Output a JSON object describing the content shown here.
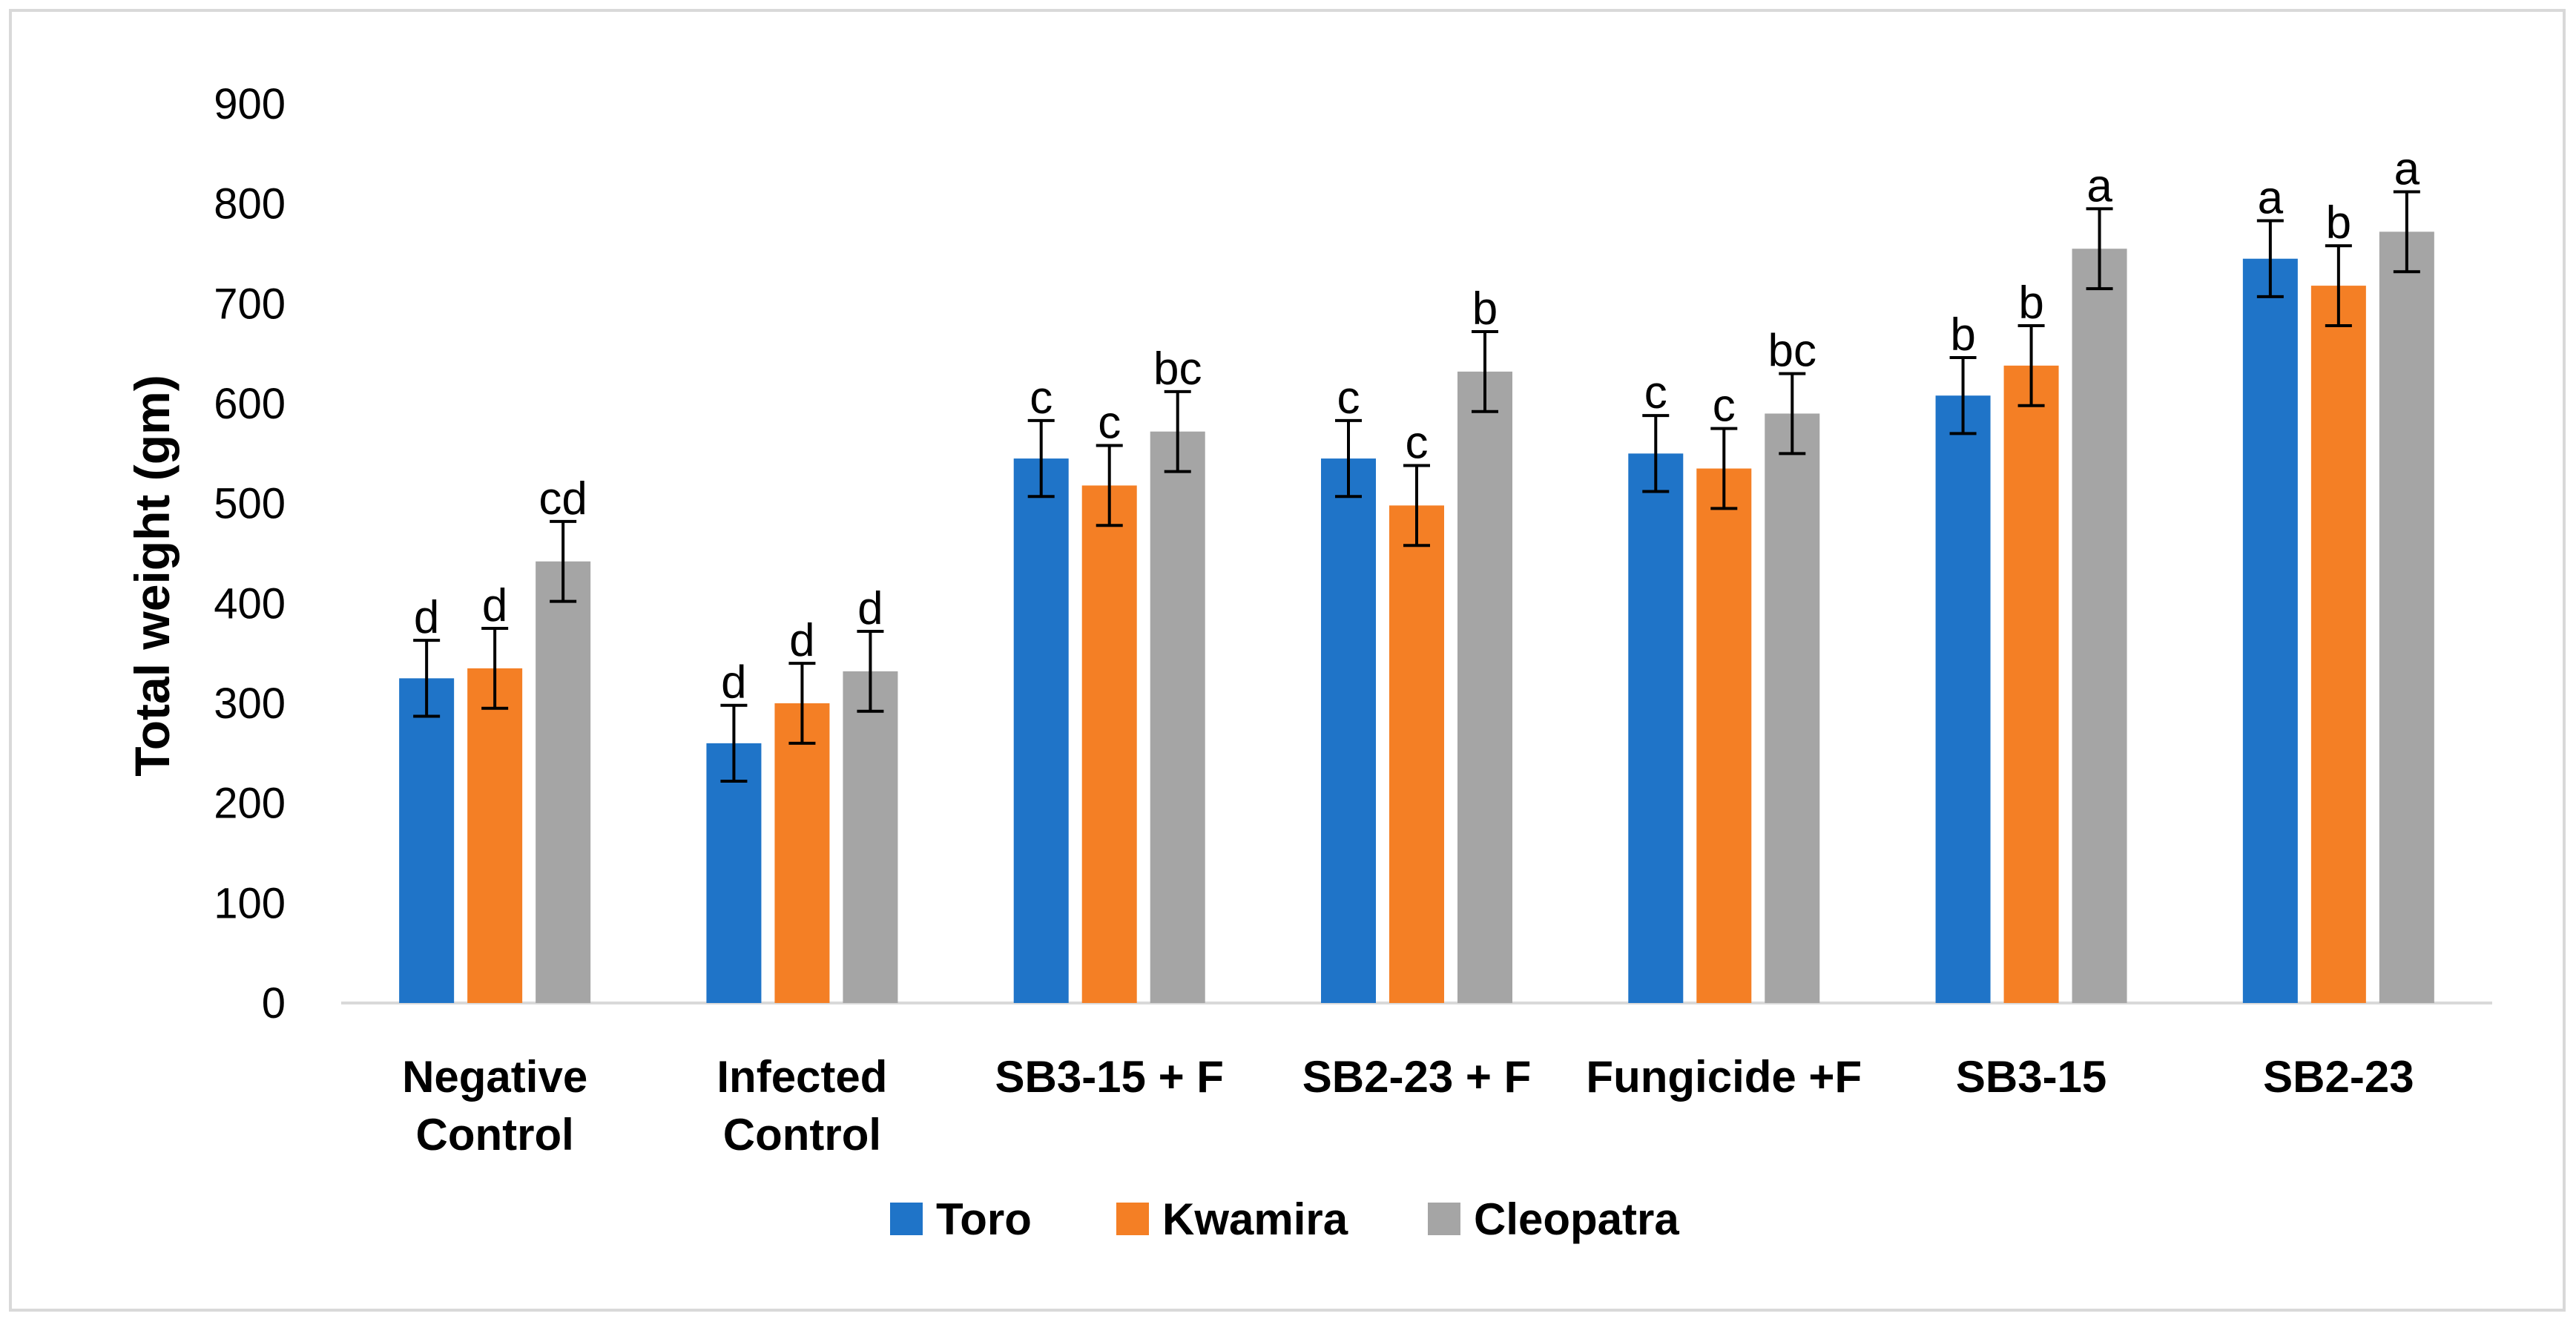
{
  "chart_data": {
    "type": "bar",
    "title": "",
    "xlabel": "",
    "ylabel": "Total weight (gm)",
    "ylim": [
      0,
      900
    ],
    "yticks": [
      "0",
      "100",
      "200",
      "300",
      "400",
      "500",
      "600",
      "700",
      "800",
      "900"
    ],
    "grid": false,
    "legend_position": "bottom",
    "categories": [
      [
        "Negative",
        "Control"
      ],
      [
        "Infected",
        "Control"
      ],
      [
        "SB3-15 + F"
      ],
      [
        "SB2-23 + F"
      ],
      [
        "Fungicide +F"
      ],
      [
        "SB3-15"
      ],
      [
        "SB2-23"
      ]
    ],
    "series": [
      {
        "name": "Toro",
        "color": "#1f74c8",
        "values": [
          325,
          260,
          545,
          545,
          550,
          608,
          745
        ],
        "errors": [
          38,
          38,
          38,
          38,
          38,
          38,
          38
        ],
        "letters": [
          "d",
          "d",
          "c",
          "c",
          "c",
          "b",
          "a"
        ]
      },
      {
        "name": "Kwamira",
        "color": "#f47f25",
        "values": [
          335,
          300,
          518,
          498,
          535,
          638,
          718
        ],
        "errors": [
          40,
          40,
          40,
          40,
          40,
          40,
          40
        ],
        "letters": [
          "d",
          "d",
          "c",
          "c",
          "c",
          "b",
          "b"
        ]
      },
      {
        "name": "Cleopatra",
        "color": "#a5a5a5",
        "values": [
          442,
          332,
          572,
          632,
          590,
          755,
          772
        ],
        "errors": [
          40,
          40,
          40,
          40,
          40,
          40,
          40
        ],
        "letters": [
          "cd",
          "d",
          "bc",
          "b",
          "bc",
          "a",
          "a"
        ]
      }
    ]
  }
}
